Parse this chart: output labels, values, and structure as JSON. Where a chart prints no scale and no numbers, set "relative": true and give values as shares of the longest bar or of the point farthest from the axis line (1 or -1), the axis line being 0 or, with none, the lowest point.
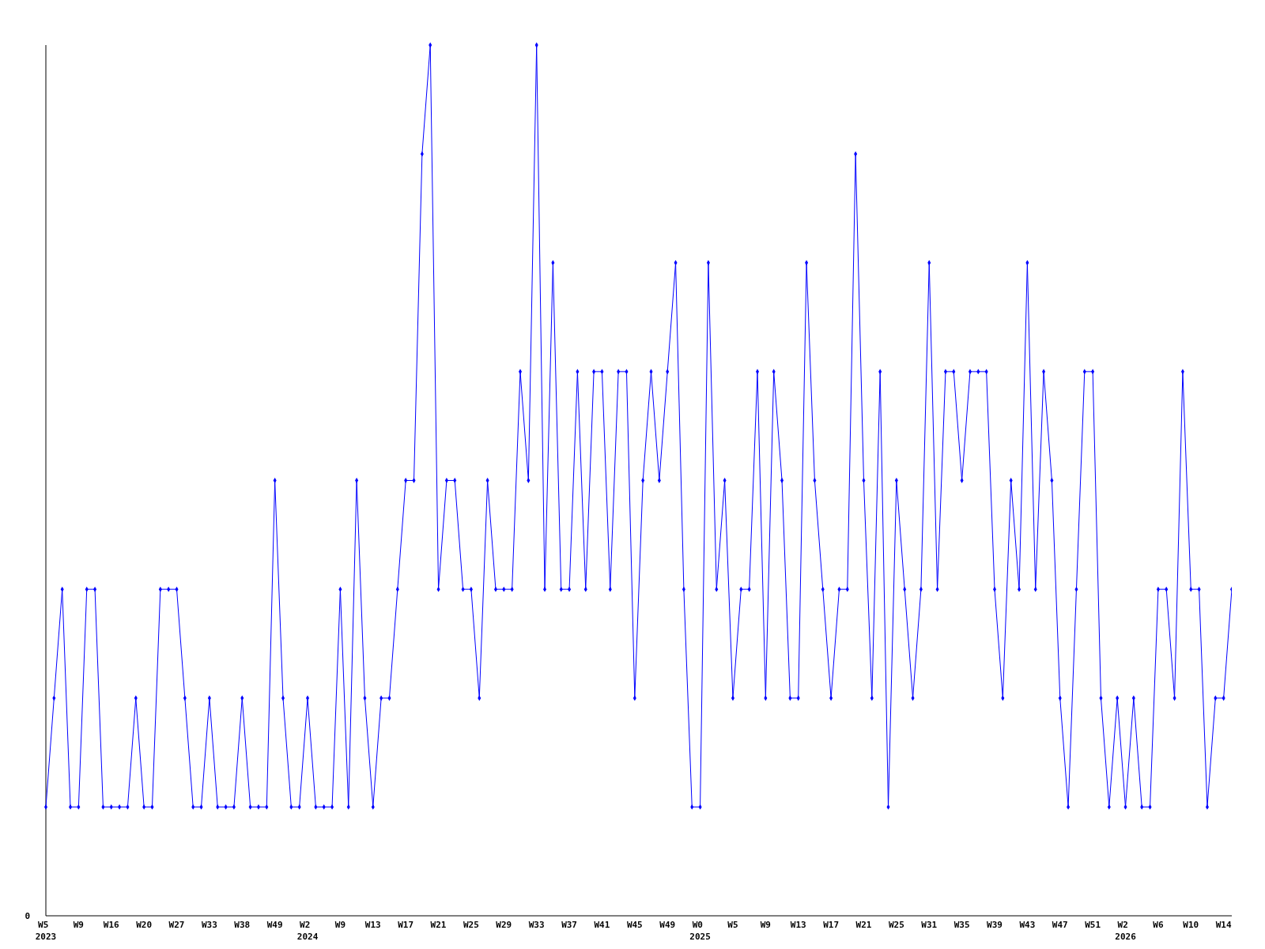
{
  "chart_data": {
    "type": "line",
    "relative": true,
    "marker": "diamond",
    "line_style": "solid",
    "annotations": [
      "0"
    ],
    "categories": [
      "W5\n2023",
      null,
      null,
      null,
      "W9",
      null,
      null,
      null,
      "W16",
      null,
      null,
      null,
      "W20",
      null,
      null,
      null,
      "W27",
      null,
      null,
      null,
      "W33",
      null,
      null,
      null,
      "W38",
      null,
      null,
      null,
      "W49",
      null,
      null,
      null,
      "W2\n2024",
      null,
      null,
      null,
      "W9",
      null,
      null,
      null,
      "W13",
      null,
      null,
      null,
      "W17",
      null,
      null,
      null,
      "W21",
      null,
      null,
      null,
      "W25",
      null,
      null,
      null,
      "W29",
      null,
      null,
      null,
      "W33",
      null,
      null,
      null,
      "W37",
      null,
      null,
      null,
      "W41",
      null,
      null,
      null,
      "W45",
      null,
      null,
      null,
      "W49",
      null,
      null,
      null,
      "W0\n2025",
      null,
      null,
      null,
      "W5",
      null,
      null,
      null,
      "W9",
      null,
      null,
      null,
      "W13",
      null,
      null,
      null,
      "W17",
      null,
      null,
      null,
      "W21",
      null,
      null,
      null,
      "W25",
      null,
      null,
      null,
      "W31",
      null,
      null,
      null,
      "W35",
      null,
      null,
      null,
      "W39",
      null,
      null,
      null,
      "W43",
      null,
      null,
      null,
      "W47",
      null,
      null,
      null,
      "W51",
      null,
      null,
      null,
      "W2\n2026",
      null,
      null,
      null,
      "W6",
      null,
      null,
      null,
      "W10",
      null,
      null,
      null,
      "W14",
      null
    ],
    "series": [
      {
        "color": "#0000ff",
        "values": [
          0.125,
          0.25,
          0.375,
          0.125,
          0.125,
          0.375,
          0.375,
          0.125,
          0.125,
          0.125,
          0.125,
          0.25,
          0.125,
          0.125,
          0.375,
          0.375,
          0.375,
          0.25,
          0.125,
          0.125,
          0.25,
          0.125,
          0.125,
          0.125,
          0.25,
          0.125,
          0.125,
          0.125,
          0.5,
          0.25,
          0.125,
          0.125,
          0.25,
          0.125,
          0.125,
          0.125,
          0.375,
          0.125,
          0.5,
          0.25,
          0.125,
          0.25,
          0.25,
          0.375,
          0.5,
          0.5,
          0.875,
          1,
          0.375,
          0.5,
          0.5,
          0.375,
          0.375,
          0.25,
          0.5,
          0.375,
          0.375,
          0.375,
          0.625,
          0.5,
          1,
          0.375,
          0.75,
          0.375,
          0.375,
          0.625,
          0.375,
          0.625,
          0.625,
          0.375,
          0.625,
          0.625,
          0.25,
          0.5,
          0.625,
          0.5,
          0.625,
          0.75,
          0.375,
          0.125,
          0.125,
          0.75,
          0.375,
          0.5,
          0.25,
          0.375,
          0.375,
          0.625,
          0.25,
          0.625,
          0.5,
          0.25,
          0.25,
          0.75,
          0.5,
          0.375,
          0.25,
          0.375,
          0.375,
          0.875,
          0.5,
          0.25,
          0.625,
          0.125,
          0.5,
          0.375,
          0.25,
          0.375,
          0.75,
          0.375,
          0.625,
          0.625,
          0.5,
          0.625,
          0.625,
          0.625,
          0.375,
          0.25,
          0.5,
          0.375,
          0.75,
          0.375,
          0.625,
          0.5,
          0.25,
          0.125,
          0.375,
          0.625,
          0.625,
          0.25,
          0.125,
          0.25,
          0.125,
          0.25,
          0.125,
          0.125,
          0.375,
          0.375,
          0.25,
          0.625,
          0.375,
          0.375,
          0.125,
          0.25,
          0.25,
          0.375
        ]
      }
    ]
  }
}
